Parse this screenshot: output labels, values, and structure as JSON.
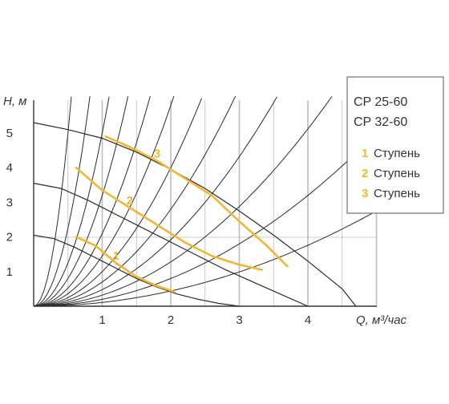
{
  "chart_data": {
    "type": "line",
    "xlabel": "Q, м³/час",
    "ylabel": "H, м",
    "xlim": [
      0,
      5
    ],
    "ylim": [
      0,
      5.5
    ],
    "x_ticks": [
      "1",
      "2",
      "3",
      "4"
    ],
    "y_ticks": [
      "1",
      "2",
      "3",
      "4",
      "5"
    ],
    "grid": true,
    "accent_color": "#f2b632",
    "models": [
      "CP 25-60",
      "CP 32-60"
    ],
    "series": [
      {
        "name": "Ступень",
        "label": "1",
        "x": [
          0,
          0.3,
          0.6,
          0.9,
          1.2,
          1.5,
          1.8,
          2.1,
          2.4,
          2.7,
          3.0
        ],
        "y": [
          2.05,
          1.95,
          1.7,
          1.4,
          1.1,
          0.8,
          0.55,
          0.35,
          0.2,
          0.08,
          0
        ]
      },
      {
        "name": "Ступень",
        "label": "2",
        "x": [
          0,
          0.4,
          0.8,
          1.2,
          1.6,
          2.0,
          2.4,
          2.8,
          3.2,
          3.6,
          4.0
        ],
        "y": [
          3.55,
          3.4,
          3.05,
          2.65,
          2.25,
          1.85,
          1.45,
          1.05,
          0.7,
          0.35,
          0
        ]
      },
      {
        "name": "Ступень",
        "label": "3",
        "x": [
          0,
          0.5,
          1.0,
          1.5,
          2.0,
          2.5,
          3.0,
          3.5,
          4.0,
          4.5,
          4.7
        ],
        "y": [
          5.3,
          5.1,
          4.85,
          4.45,
          3.95,
          3.4,
          2.75,
          2.05,
          1.3,
          0.5,
          0
        ]
      }
    ],
    "highlighted_segments": [
      {
        "label": "1",
        "x": [
          0.62,
          0.9,
          1.2,
          1.5,
          1.8,
          2.05
        ],
        "y": [
          2.0,
          1.75,
          1.25,
          0.85,
          0.58,
          0.42
        ]
      },
      {
        "label": "2",
        "x": [
          0.62,
          1.0,
          1.4,
          1.8,
          2.2,
          2.6,
          3.0,
          3.33
        ],
        "y": [
          4.0,
          3.35,
          2.85,
          2.35,
          1.85,
          1.45,
          1.2,
          1.05
        ]
      },
      {
        "label": "3",
        "x": [
          1.05,
          1.4,
          1.8,
          2.2,
          2.6,
          3.0,
          3.4,
          3.7
        ],
        "y": [
          4.9,
          4.6,
          4.2,
          3.7,
          3.2,
          2.45,
          1.75,
          1.15
        ]
      }
    ],
    "resistance_curves_k": [
      20,
      9,
      5,
      3.2,
      2.1,
      1.45,
      1.0,
      0.7,
      0.48,
      0.32,
      0.2,
      0.11
    ]
  },
  "legend": {
    "models": [
      "CP 25-60",
      "CP 32-60"
    ],
    "items": [
      {
        "num": "1",
        "text": "Ступень"
      },
      {
        "num": "2",
        "text": "Ступень"
      },
      {
        "num": "3",
        "text": "Ступень"
      }
    ]
  }
}
